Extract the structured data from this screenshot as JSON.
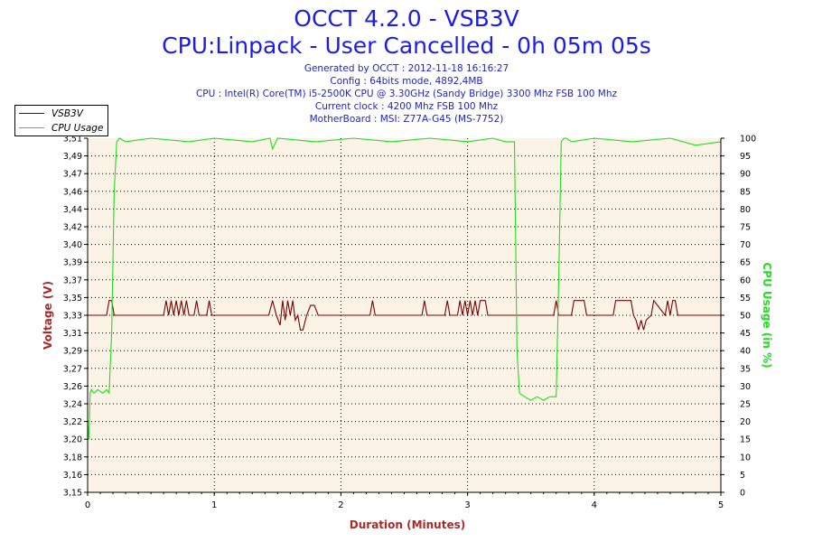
{
  "title": "OCCT 4.2.0 - VSB3V",
  "subtitle": "CPU:Linpack - User Cancelled - 0h 05m 05s",
  "info_lines": [
    "Generated by OCCT : 2012-11-18 16:16:27",
    "Config : 64bits mode, 4892,4MB",
    "CPU : Intel(R) Core(TM) i5-2500K CPU @ 3.30GHz (Sandy Bridge) 3300 Mhz FSB 100 Mhz",
    "Current clock : 4200 Mhz FSB 100 Mhz",
    "MotherBoard : MSI: Z77A-G45 (MS-7752)"
  ],
  "colors": {
    "title": "#1c1ce8",
    "axis_label": "#a52a2a",
    "voltage": "#7a0000",
    "cpu": "#22dd22",
    "plot_bg": "#fbf3e6",
    "grid": "#000000"
  },
  "chart_data": {
    "type": "line",
    "xlabel": "Duration (Minutes)",
    "ylabel_left": "Voltage (V)",
    "ylabel_right": "CPU Usage (in %)",
    "xlim": [
      0,
      5
    ],
    "ylim_left": [
      3.15,
      3.51
    ],
    "ylim_right": [
      0,
      100
    ],
    "x_ticks": [
      "0",
      "1",
      "2",
      "3",
      "4",
      "5"
    ],
    "y_left_ticks": [
      "3,15",
      "3,16",
      "3,18",
      "3,20",
      "3,22",
      "3,24",
      "3,26",
      "3,27",
      "3,29",
      "3,31",
      "3,33",
      "3,35",
      "3,37",
      "3,39",
      "3,40",
      "3,42",
      "3,44",
      "3,46",
      "3,47",
      "3,49",
      "3,51"
    ],
    "y_right_ticks": [
      "0",
      "5",
      "10",
      "15",
      "20",
      "25",
      "30",
      "35",
      "40",
      "45",
      "50",
      "55",
      "60",
      "65",
      "70",
      "75",
      "80",
      "85",
      "90",
      "95",
      "100"
    ],
    "grid": "dotted",
    "legend_position": "top-left",
    "legend": [
      "VSB3V",
      "CPU Usage"
    ],
    "series": [
      {
        "name": "VSB3V",
        "axis": "left",
        "x": [
          0.0,
          0.15,
          0.17,
          0.19,
          0.21,
          0.6,
          0.62,
          0.64,
          0.66,
          0.68,
          0.7,
          0.72,
          0.74,
          0.76,
          0.78,
          0.8,
          0.84,
          0.86,
          0.88,
          0.94,
          0.96,
          0.98,
          1.43,
          1.46,
          1.49,
          1.52,
          1.54,
          1.56,
          1.58,
          1.6,
          1.62,
          1.64,
          1.66,
          1.68,
          1.7,
          1.73,
          1.76,
          1.79,
          1.82,
          1.84,
          1.88,
          1.92,
          2.23,
          2.25,
          2.27,
          2.64,
          2.66,
          2.68,
          2.82,
          2.84,
          2.86,
          2.92,
          2.94,
          2.96,
          2.98,
          3.0,
          3.02,
          3.04,
          3.06,
          3.08,
          3.1,
          3.12,
          3.14,
          3.16,
          3.26,
          3.28,
          3.68,
          3.7,
          3.72,
          3.82,
          3.84,
          3.92,
          3.94,
          4.15,
          4.17,
          4.27,
          4.29,
          4.31,
          4.33,
          4.35,
          4.37,
          4.39,
          4.41,
          4.45,
          4.47,
          4.56,
          4.58,
          4.6,
          4.62,
          4.64,
          4.66,
          4.68,
          5.0
        ],
        "y": [
          3.33,
          3.33,
          3.345,
          3.345,
          3.33,
          3.33,
          3.345,
          3.33,
          3.345,
          3.33,
          3.345,
          3.33,
          3.345,
          3.33,
          3.345,
          3.33,
          3.33,
          3.345,
          3.33,
          3.33,
          3.345,
          3.33,
          3.33,
          3.345,
          3.33,
          3.32,
          3.345,
          3.325,
          3.345,
          3.33,
          3.345,
          3.325,
          3.33,
          3.315,
          3.315,
          3.33,
          3.34,
          3.34,
          3.33,
          3.33,
          3.33,
          3.33,
          3.33,
          3.345,
          3.33,
          3.33,
          3.345,
          3.33,
          3.33,
          3.345,
          3.33,
          3.33,
          3.345,
          3.33,
          3.345,
          3.33,
          3.345,
          3.33,
          3.345,
          3.33,
          3.345,
          3.345,
          3.345,
          3.33,
          3.33,
          3.33,
          3.33,
          3.345,
          3.33,
          3.33,
          3.345,
          3.345,
          3.33,
          3.33,
          3.345,
          3.345,
          3.345,
          3.33,
          3.325,
          3.315,
          3.325,
          3.315,
          3.325,
          3.33,
          3.345,
          3.33,
          3.345,
          3.33,
          3.345,
          3.345,
          3.33,
          3.33,
          3.33
        ]
      },
      {
        "name": "CPU Usage",
        "axis": "right",
        "x": [
          0.0,
          0.01,
          0.02,
          0.03,
          0.05,
          0.08,
          0.12,
          0.15,
          0.17,
          0.19,
          0.21,
          0.23,
          0.25,
          0.3,
          0.5,
          0.8,
          1.0,
          1.3,
          1.44,
          1.46,
          1.5,
          1.8,
          2.1,
          2.4,
          2.7,
          3.0,
          3.2,
          3.3,
          3.37,
          3.39,
          3.41,
          3.45,
          3.5,
          3.55,
          3.6,
          3.65,
          3.7,
          3.72,
          3.74,
          3.76,
          3.78,
          3.82,
          4.0,
          4.3,
          4.6,
          4.8,
          5.0
        ],
        "y": [
          20,
          15,
          28,
          29,
          28,
          29,
          28,
          29,
          28,
          45,
          85,
          99,
          100,
          99,
          100,
          99,
          100,
          99,
          100,
          97,
          100,
          99,
          100,
          99,
          100,
          99,
          100,
          99,
          99,
          40,
          28,
          27,
          26,
          27,
          26,
          27,
          27,
          60,
          99,
          100,
          100,
          99,
          100,
          99,
          100,
          98,
          99
        ]
      }
    ]
  }
}
